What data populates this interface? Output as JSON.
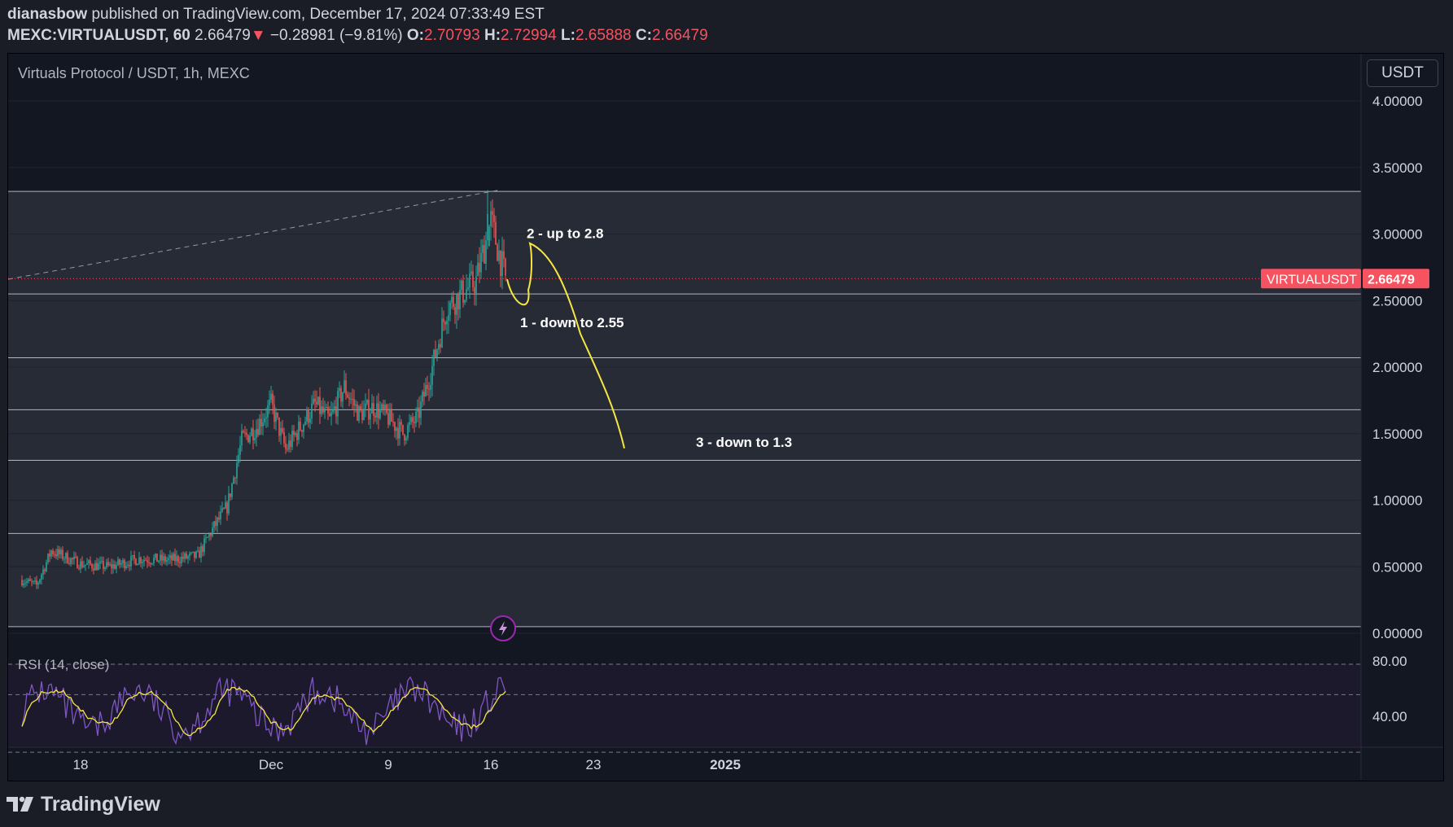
{
  "header": {
    "author": "dianasbow",
    "published_text": " published on TradingView.com, December 17, 2024 07:33:49 EST",
    "symbol_line": "MEXC:VIRTUALUSDT, 60",
    "last_price": "2.66479",
    "change_arrow": "▼",
    "change": "−0.28981 (−9.81%)",
    "o_label": "O:",
    "o_value": "2.70793",
    "h_label": "H:",
    "h_value": "2.72994",
    "l_label": "L:",
    "l_value": "2.65888",
    "c_label": "C:",
    "c_value": "2.66479"
  },
  "chart": {
    "legend_title": "Virtuals Protocol / USDT, 1h, MEXC",
    "currency_button": "USDT",
    "price_tag_symbol": "VIRTUALUSDT",
    "price_tag_value": "2.66479",
    "rsi_label": "RSI (14, close)",
    "brand": "TradingView"
  },
  "colors": {
    "background": "#131722",
    "up": "#26a69a",
    "down": "#ef5350",
    "annotation": "#f5e642",
    "rsi_line": "#7e57c2",
    "rsi_ma": "#f5e642",
    "price_tag": "#f7525f"
  },
  "chart_data": {
    "type": "candlestick",
    "symbol": "VIRTUALUSDT",
    "interval": "1h",
    "ylim": [
      0,
      4.2
    ],
    "y_ticks": [
      "4.00000",
      "3.50000",
      "3.00000",
      "2.50000",
      "2.00000",
      "1.50000",
      "1.00000",
      "0.50000",
      "0.00000"
    ],
    "x_ticks": [
      "18",
      "Dec",
      "9",
      "16",
      "23",
      "2025"
    ],
    "close_path": [
      [
        "2024-11-14",
        0.4
      ],
      [
        "2024-11-15",
        0.36
      ],
      [
        "2024-11-16",
        0.62
      ],
      [
        "2024-11-18",
        0.52
      ],
      [
        "2024-11-20",
        0.5
      ],
      [
        "2024-11-22",
        0.56
      ],
      [
        "2024-11-24",
        0.55
      ],
      [
        "2024-11-26",
        0.58
      ],
      [
        "2024-11-27",
        0.78
      ],
      [
        "2024-11-28",
        0.95
      ],
      [
        "2024-11-29",
        1.45
      ],
      [
        "2024-11-30",
        1.55
      ],
      [
        "2024-12-01",
        1.72
      ],
      [
        "2024-12-02",
        1.38
      ],
      [
        "2024-12-03",
        1.55
      ],
      [
        "2024-12-04",
        1.72
      ],
      [
        "2024-12-05",
        1.6
      ],
      [
        "2024-12-06",
        1.85
      ],
      [
        "2024-12-07",
        1.65
      ],
      [
        "2024-12-08",
        1.7
      ],
      [
        "2024-12-09",
        1.62
      ],
      [
        "2024-12-10",
        1.5
      ],
      [
        "2024-12-11",
        1.62
      ],
      [
        "2024-12-12",
        2.0
      ],
      [
        "2024-12-13",
        2.45
      ],
      [
        "2024-12-14",
        2.55
      ],
      [
        "2024-12-15",
        2.65
      ],
      [
        "2024-12-16",
        3.1
      ],
      [
        "2024-12-17",
        2.66
      ]
    ],
    "horizontal_levels": [
      3.32,
      2.55,
      2.07,
      1.68,
      1.3,
      0.75,
      0.05
    ],
    "current_price": 2.66479,
    "annotations": [
      {
        "text": "1 - down to 2.55",
        "date": "2024-12-18",
        "price": 2.3
      },
      {
        "text": "2 - up to 2.8",
        "date": "2024-12-19",
        "price": 2.97
      },
      {
        "text": "3 - down to 1.3",
        "date": "2024-12-30",
        "price": 1.4
      }
    ],
    "rsi": {
      "levels": [
        "80.00",
        "40.00"
      ],
      "period": 14
    }
  }
}
